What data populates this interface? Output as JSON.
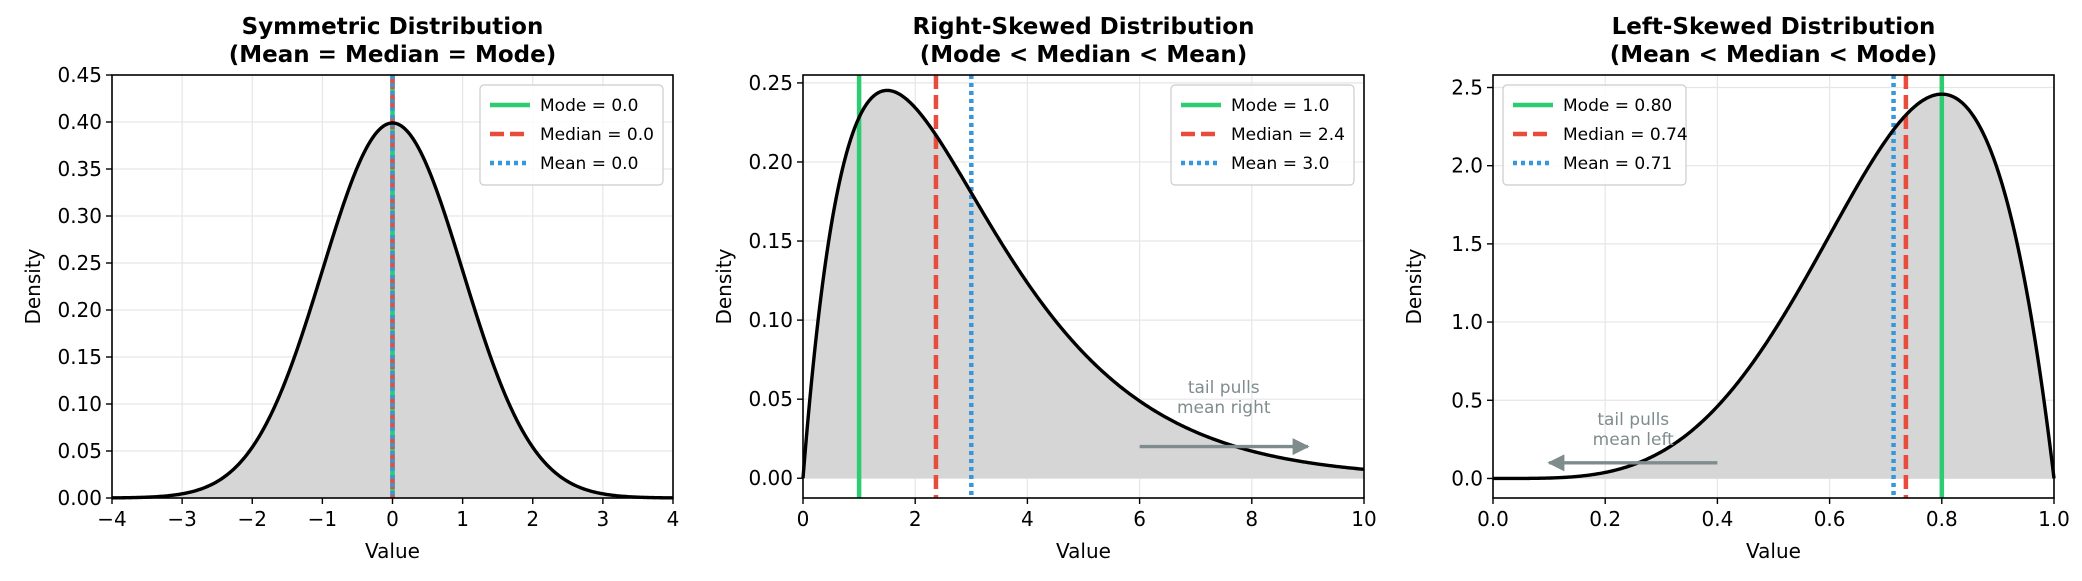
{
  "colors": {
    "mode": "#2ecc71",
    "median": "#e74c3c",
    "mean": "#3498db",
    "curve": "#000000",
    "fill": "#d6d6d6",
    "arrow": "#7f8c8d",
    "grid": "#e6e6e6"
  },
  "chart_data": [
    {
      "type": "line",
      "distribution": "normal",
      "title_line1": "Symmetric Distribution",
      "title_line2": "(Mean = Median = Mode)",
      "xlabel": "Value",
      "ylabel": "Density",
      "xlim": [
        -4,
        4
      ],
      "ylim": [
        0,
        0.45
      ],
      "xticks": [
        -4,
        -3,
        -2,
        -1,
        0,
        1,
        2,
        3,
        4
      ],
      "xtick_labels": [
        "−4",
        "−3",
        "−2",
        "−1",
        "0",
        "1",
        "2",
        "3",
        "4"
      ],
      "yticks": [
        0,
        0.05,
        0.1,
        0.15,
        0.2,
        0.25,
        0.3,
        0.35,
        0.4,
        0.45
      ],
      "ytick_labels": [
        "0.00",
        "0.05",
        "0.10",
        "0.15",
        "0.20",
        "0.25",
        "0.30",
        "0.35",
        "0.40",
        "0.45"
      ],
      "grid": true,
      "legend_position": "top-right",
      "series": [
        {
          "name": "Mode = 0.0",
          "kind": "mode",
          "x": 0.0,
          "style": "solid"
        },
        {
          "name": "Median = 0.0",
          "kind": "median",
          "x": 0.0,
          "style": "dashed"
        },
        {
          "name": "Mean = 0.0",
          "kind": "mean",
          "x": 0.0,
          "style": "dotted"
        }
      ],
      "annotation": null
    },
    {
      "type": "line",
      "distribution": "gamma",
      "title_line1": "Right-Skewed Distribution",
      "title_line2": "(Mode < Median < Mean)",
      "xlabel": "Value",
      "ylabel": "Density",
      "xlim": [
        0,
        10
      ],
      "ylim": [
        -0.0125,
        0.255
      ],
      "xticks": [
        0,
        2,
        4,
        6,
        8,
        10
      ],
      "xtick_labels": [
        "0",
        "2",
        "4",
        "6",
        "8",
        "10"
      ],
      "yticks": [
        0,
        0.05,
        0.1,
        0.15,
        0.2,
        0.25
      ],
      "ytick_labels": [
        "0.00",
        "0.05",
        "0.10",
        "0.15",
        "0.20",
        "0.25"
      ],
      "grid": true,
      "legend_position": "top-right",
      "series": [
        {
          "name": "Mode = 1.0",
          "kind": "mode",
          "x": 1.0,
          "style": "solid"
        },
        {
          "name": "Median = 2.4",
          "kind": "median",
          "x": 2.37,
          "style": "dashed"
        },
        {
          "name": "Mean = 3.0",
          "kind": "mean",
          "x": 3.0,
          "style": "dotted"
        }
      ],
      "annotation": {
        "line1": "tail pulls",
        "line2": "mean right",
        "text_x": 7.5,
        "text_y": 0.04,
        "arrow_from": [
          6.0,
          0.02
        ],
        "arrow_to": [
          9.0,
          0.02
        ]
      }
    },
    {
      "type": "line",
      "distribution": "beta",
      "title_line1": "Left-Skewed Distribution",
      "title_line2": "(Mean < Median < Mode)",
      "xlabel": "Value",
      "ylabel": "Density",
      "xlim": [
        0,
        1
      ],
      "ylim": [
        -0.125,
        2.58
      ],
      "xticks": [
        0,
        0.2,
        0.4,
        0.6,
        0.8,
        1.0
      ],
      "xtick_labels": [
        "0.0",
        "0.2",
        "0.4",
        "0.6",
        "0.8",
        "1.0"
      ],
      "yticks": [
        0,
        0.5,
        1.0,
        1.5,
        2.0,
        2.5
      ],
      "ytick_labels": [
        "0.0",
        "0.5",
        "1.0",
        "1.5",
        "2.0",
        "2.5"
      ],
      "grid": true,
      "legend_position": "top-left",
      "series": [
        {
          "name": "Mode = 0.80",
          "kind": "mode",
          "x": 0.8,
          "style": "solid"
        },
        {
          "name": "Median = 0.74",
          "kind": "median",
          "x": 0.736,
          "style": "dashed"
        },
        {
          "name": "Mean = 0.71",
          "kind": "mean",
          "x": 0.714,
          "style": "dotted"
        }
      ],
      "annotation": {
        "line1": "tail pulls",
        "line2": "mean left",
        "text_x": 0.25,
        "text_y": 0.2,
        "arrow_from": [
          0.4,
          0.1
        ],
        "arrow_to": [
          0.1,
          0.1
        ]
      }
    }
  ]
}
